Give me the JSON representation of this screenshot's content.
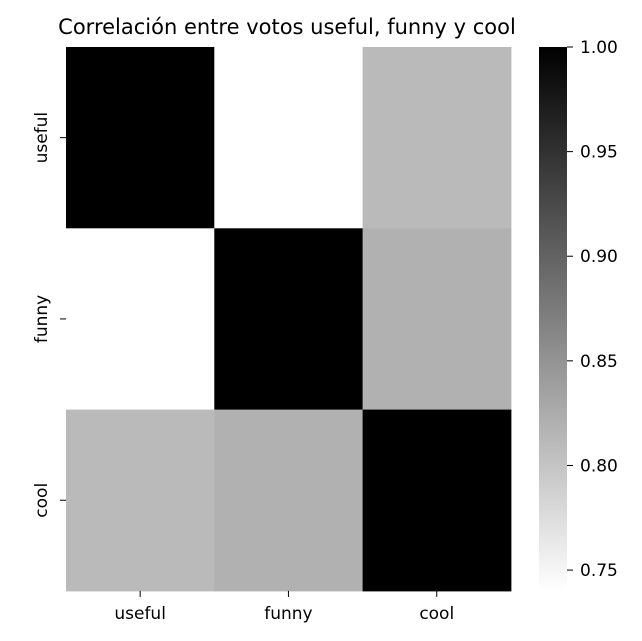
{
  "chart_data": {
    "type": "heatmap",
    "title": "Correlación entre votos useful, funny y cool",
    "xlabel": "",
    "ylabel": "",
    "x_categories": [
      "useful",
      "funny",
      "cool"
    ],
    "y_categories": [
      "useful",
      "funny",
      "cool"
    ],
    "values": [
      [
        1.0,
        0.74,
        0.81
      ],
      [
        0.74,
        1.0,
        0.82
      ],
      [
        0.81,
        0.82,
        1.0
      ]
    ],
    "colormap": "Greys",
    "color_low": "#ffffff",
    "color_high": "#000000",
    "colorbar": {
      "range": [
        0.74,
        1.0
      ],
      "ticks": [
        "0.75",
        "0.80",
        "0.85",
        "0.90",
        "0.95",
        "1.00"
      ]
    },
    "grid": false
  }
}
